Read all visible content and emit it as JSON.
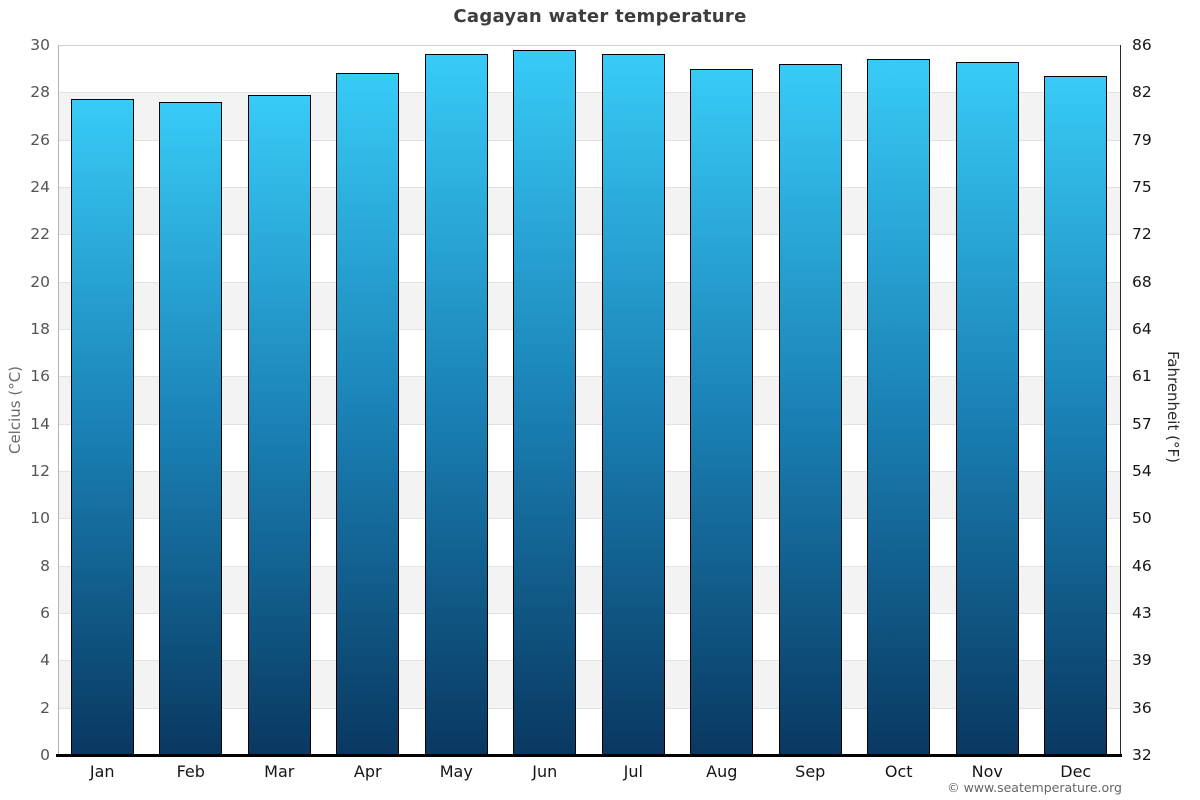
{
  "title": "Cagayan water temperature",
  "watermark": "© www.seatemperature.org",
  "axes": {
    "left_label": "Celcius (°C)",
    "right_label": "Fahrenheit (°F)",
    "celsius_ticks": [
      0,
      2,
      4,
      6,
      8,
      10,
      12,
      14,
      16,
      18,
      20,
      22,
      24,
      26,
      28,
      30
    ],
    "fahrenheit_ticks": [
      32,
      36,
      39,
      43,
      46,
      50,
      54,
      57,
      61,
      64,
      68,
      72,
      75,
      79,
      82,
      86
    ]
  },
  "chart_data": {
    "type": "bar",
    "title": "Cagayan water temperature",
    "categories": [
      "Jan",
      "Feb",
      "Mar",
      "Apr",
      "May",
      "Jun",
      "Jul",
      "Aug",
      "Sep",
      "Oct",
      "Nov",
      "Dec"
    ],
    "values": [
      27.7,
      27.6,
      27.9,
      28.8,
      29.6,
      29.8,
      29.6,
      29.0,
      29.2,
      29.4,
      29.3,
      28.7
    ],
    "xlabel": "",
    "ylabel": "Celcius (°C)",
    "y2label": "Fahrenheit (°F)",
    "ylim": [
      0,
      30
    ],
    "y_tick_step": 2,
    "grid": "alternating horizontal bands every 2°C",
    "legend": "none"
  },
  "colors": {
    "bar_gradient_top": "#38cbf7",
    "bar_gradient_mid": "#1a81b5",
    "bar_gradient_bottom": "#093861",
    "bar_border": "#000000",
    "band_fill": "#f3f3f3",
    "gridline": "#e2e2e2",
    "title_text": "#3d3d3d",
    "left_tick_text": "#545454",
    "right_tick_text": "#151515",
    "watermark_text": "#666666",
    "background": "#ffffff"
  }
}
